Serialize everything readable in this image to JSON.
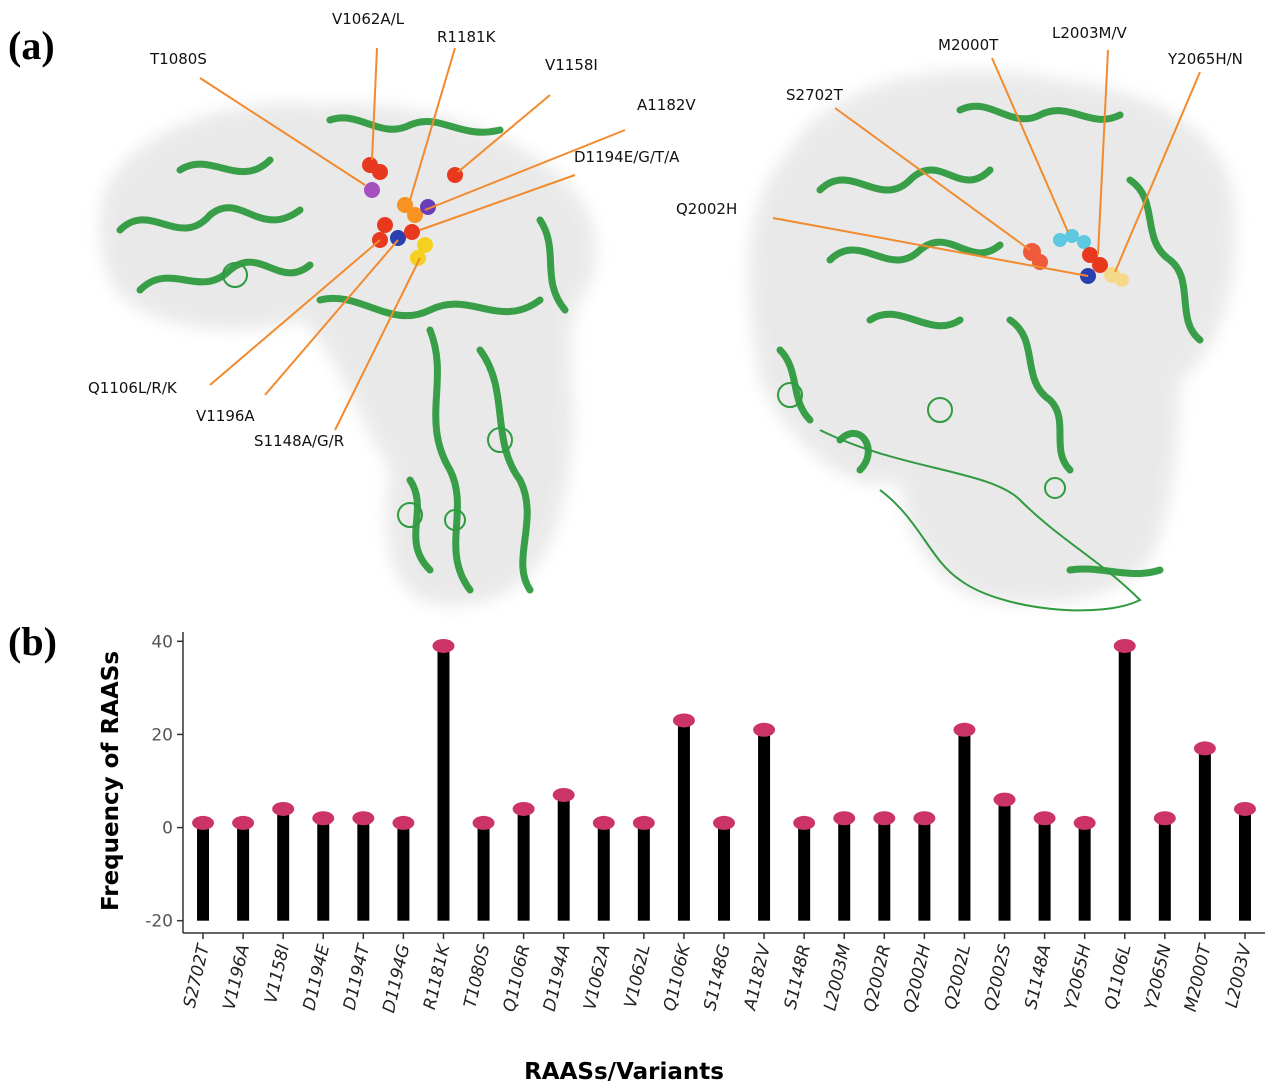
{
  "figure": {
    "panel_a_label": "(a)",
    "panel_b_label": "(b)"
  },
  "structure_left": {
    "labels": [
      "V1062A/L",
      "R1181K",
      "T1080S",
      "V1158I",
      "A1182V",
      "D1194E/G/T/A",
      "Q1106L/R/K",
      "V1196A",
      "S1148A/G/R"
    ]
  },
  "structure_right": {
    "labels": [
      "M2000T",
      "L2003M/V",
      "Y2065H/N",
      "S2702T",
      "Q2002H"
    ]
  },
  "colors": {
    "protein": "#2f9a3f",
    "surface": "#e6e6e6",
    "leader": "#f28a2e",
    "marker": "#cc3366",
    "stem": "#000000",
    "spheres": [
      "#e8391f",
      "#f79321",
      "#2a3fb0",
      "#f5d020",
      "#a64fbf",
      "#5ec8e0",
      "#6a3db8",
      "#ef5b3a"
    ]
  },
  "chart_data": {
    "type": "lollipop",
    "ylabel": "Frequency of RAASs",
    "xlabel": "RAASs/Variants",
    "ylim": [
      -22,
      42
    ],
    "yticks": [
      -20,
      0,
      20,
      40
    ],
    "baseline": -20,
    "categories": [
      "S2702T",
      "V1196A",
      "V1158I",
      "D1194E",
      "D1194T",
      "D1194G",
      "R1181K",
      "T1080S",
      "Q1106R",
      "D1194A",
      "V1062A",
      "V1062L",
      "Q1106K",
      "S1148G",
      "A1182V",
      "S1148R",
      "L2003M",
      "Q2002R",
      "Q2002H",
      "Q2002L",
      "Q2002S",
      "S1148A",
      "Y2065H",
      "Q1106L",
      "Y2065N",
      "M2000T",
      "L2003V"
    ],
    "values": [
      1,
      1,
      4,
      2,
      2,
      1,
      39,
      1,
      4,
      7,
      1,
      1,
      23,
      1,
      21,
      1,
      2,
      2,
      2,
      21,
      6,
      2,
      1,
      39,
      2,
      17,
      4
    ],
    "grid": false
  }
}
